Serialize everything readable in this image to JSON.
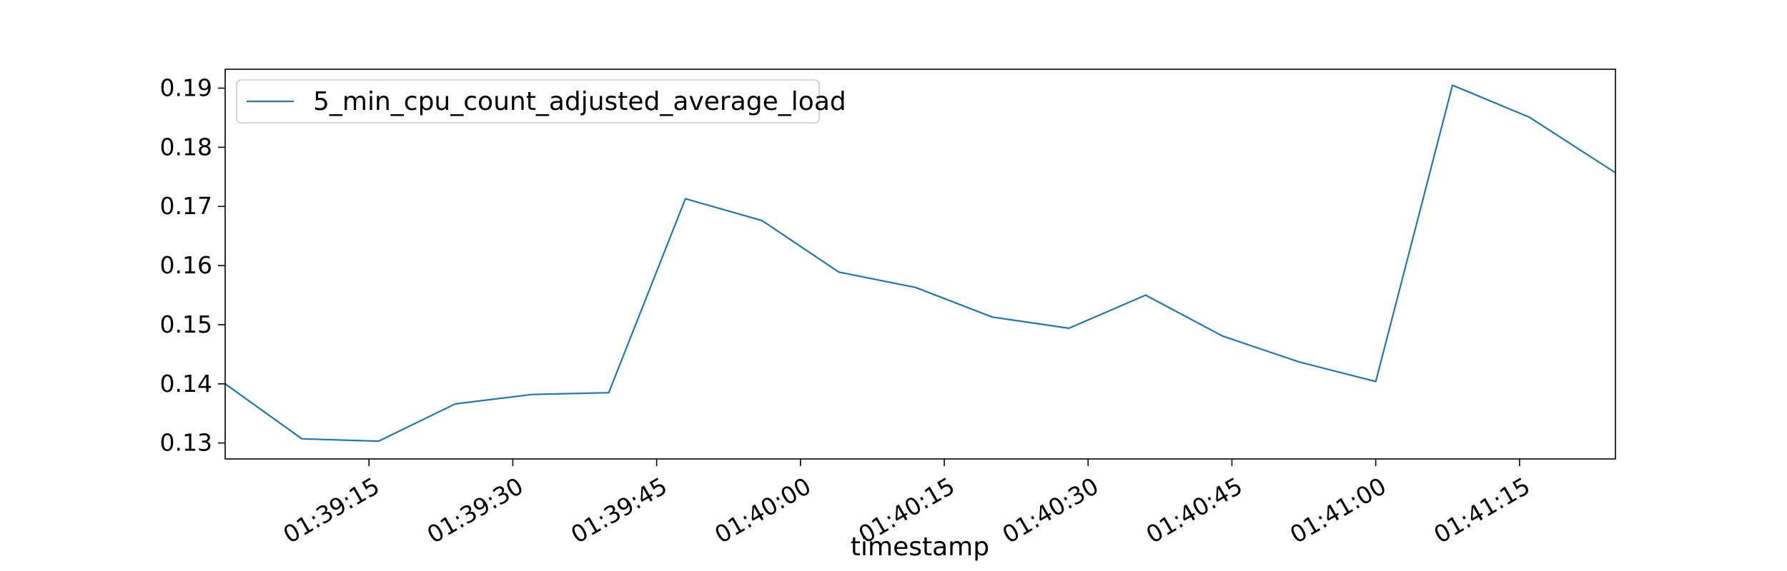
{
  "chart_data": {
    "type": "line",
    "title": "",
    "xlabel": "timestamp",
    "ylabel": "",
    "x_tick_labels": [
      "01:39:15",
      "01:39:30",
      "01:39:45",
      "01:40:00",
      "01:40:15",
      "01:40:30",
      "01:40:45",
      "01:41:00",
      "01:41:15"
    ],
    "y_tick_labels": [
      "0.13",
      "0.14",
      "0.15",
      "0.16",
      "0.17",
      "0.18",
      "0.19"
    ],
    "y_ticks": [
      0.13,
      0.14,
      0.15,
      0.16,
      0.17,
      0.18,
      0.19
    ],
    "x_ticks": [
      "01:39:15",
      "01:39:30",
      "01:39:45",
      "01:40:00",
      "01:40:15",
      "01:40:30",
      "01:40:45",
      "01:41:00",
      "01:41:15"
    ],
    "xlim": [
      "01:39:00",
      "01:41:25"
    ],
    "ylim": [
      0.1273,
      0.1932
    ],
    "grid": false,
    "legend_position": "top-left",
    "series": [
      {
        "name": "5_min_cpu_count_adjusted_average_load",
        "color": "#1f77b4",
        "x": [
          "01:39:00",
          "01:39:08",
          "01:39:16",
          "01:39:24",
          "01:39:32",
          "01:39:40",
          "01:39:48",
          "01:39:56",
          "01:40:04",
          "01:40:12",
          "01:40:20",
          "01:40:28",
          "01:40:36",
          "01:40:44",
          "01:40:52",
          "01:41:00",
          "01:41:08",
          "01:41:16",
          "01:41:25"
        ],
        "values": [
          0.14,
          0.1307,
          0.1303,
          0.1366,
          0.1382,
          0.1385,
          0.1713,
          0.1676,
          0.1589,
          0.1563,
          0.1513,
          0.1494,
          0.155,
          0.1481,
          0.1437,
          0.1404,
          0.1905,
          0.1851,
          0.1757
        ]
      }
    ]
  }
}
